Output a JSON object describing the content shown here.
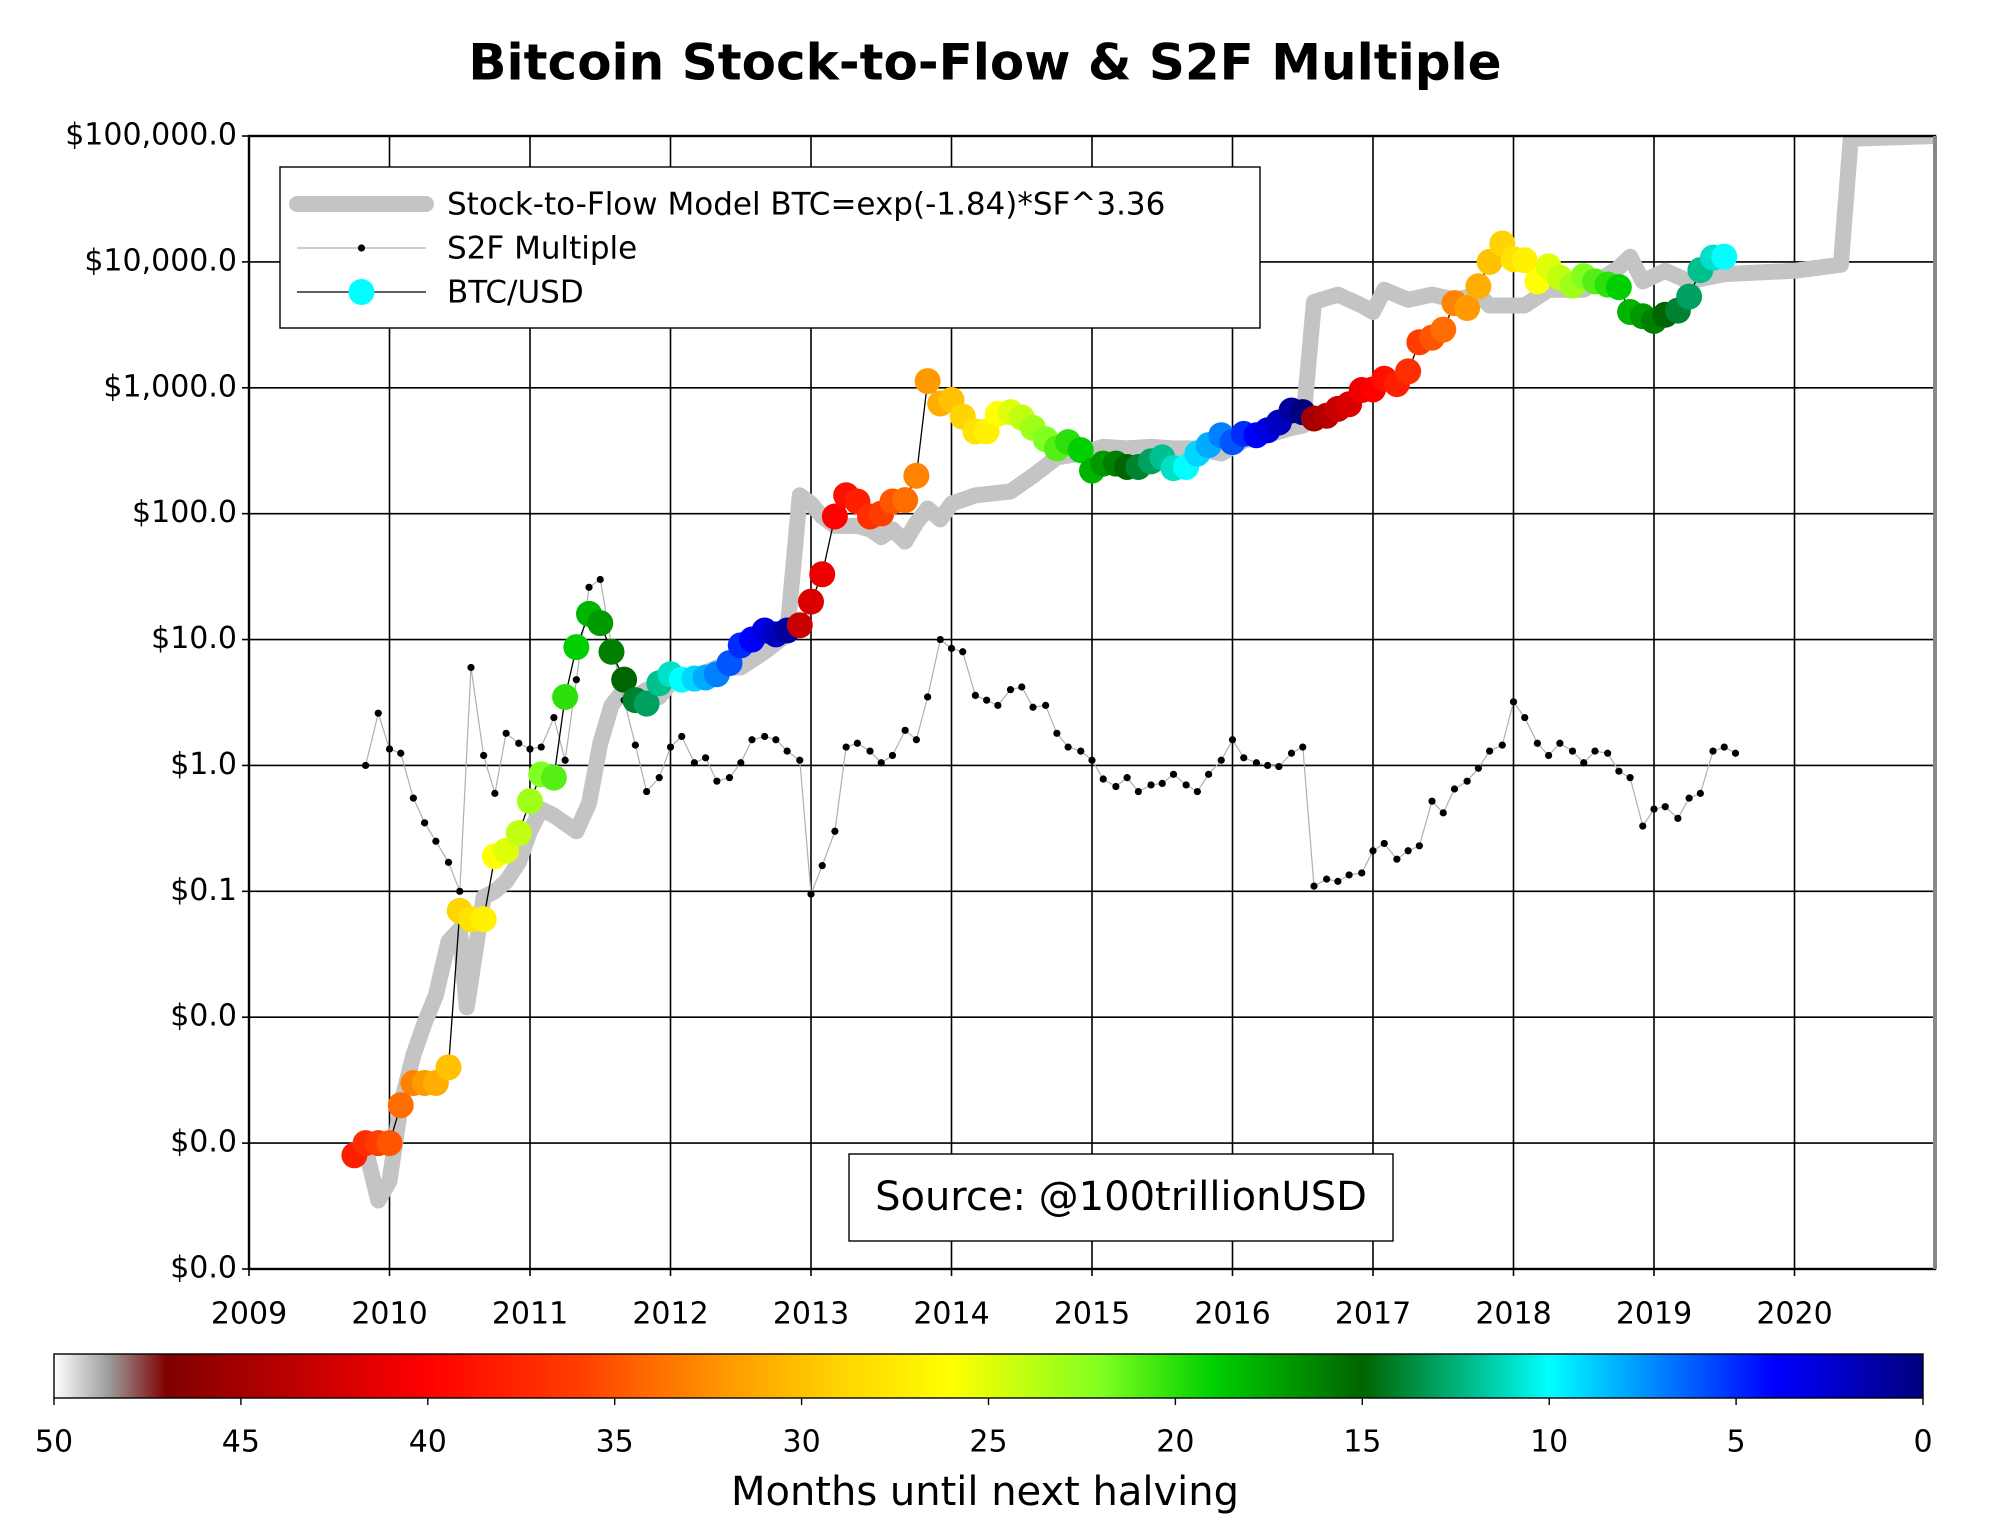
{
  "chart_data": {
    "type": "line",
    "title": "Bitcoin Stock-to-Flow & S2F Multiple",
    "log_y": true,
    "grid": true,
    "legend": "upper left",
    "annotation": "Source: @100trillionUSD",
    "xlim": [
      2009,
      2021
    ],
    "xticks": [
      2009,
      2010,
      2011,
      2012,
      2013,
      2014,
      2015,
      2016,
      2017,
      2018,
      2019,
      2020
    ],
    "ylim": [
      0.0001,
      100000
    ],
    "yticks": [
      {
        "value": 0.0001,
        "label": "$0.0"
      },
      {
        "value": 0.001,
        "label": "$0.0"
      },
      {
        "value": 0.01,
        "label": "$0.0"
      },
      {
        "value": 0.1,
        "label": "$0.1"
      },
      {
        "value": 1,
        "label": "$1.0"
      },
      {
        "value": 10,
        "label": "$10.0"
      },
      {
        "value": 100,
        "label": "$100.0"
      },
      {
        "value": 1000,
        "label": "$1,000.0"
      },
      {
        "value": 10000,
        "label": "$10,000.0"
      },
      {
        "value": 100000,
        "label": "$100,000.0"
      }
    ],
    "x": [
      2009.75,
      2009.83,
      2009.92,
      2010.0,
      2010.08,
      2010.17,
      2010.25,
      2010.33,
      2010.42,
      2010.5,
      2010.58,
      2010.67,
      2010.75,
      2010.83,
      2010.92,
      2011.0,
      2011.08,
      2011.17,
      2011.25,
      2011.33,
      2011.42,
      2011.5,
      2011.58,
      2011.67,
      2011.75,
      2011.83,
      2011.92,
      2012.0,
      2012.08,
      2012.17,
      2012.25,
      2012.33,
      2012.42,
      2012.5,
      2012.58,
      2012.67,
      2012.75,
      2012.83,
      2012.92,
      2013.0,
      2013.08,
      2013.17,
      2013.25,
      2013.33,
      2013.42,
      2013.5,
      2013.58,
      2013.67,
      2013.75,
      2013.83,
      2013.92,
      2014.0,
      2014.08,
      2014.17,
      2014.25,
      2014.33,
      2014.42,
      2014.5,
      2014.58,
      2014.67,
      2014.75,
      2014.83,
      2014.92,
      2015.0,
      2015.08,
      2015.17,
      2015.25,
      2015.33,
      2015.42,
      2015.5,
      2015.58,
      2015.67,
      2015.75,
      2015.83,
      2015.92,
      2016.0,
      2016.08,
      2016.17,
      2016.25,
      2016.33,
      2016.42,
      2016.5,
      2016.58,
      2016.67,
      2016.75,
      2016.83,
      2016.92,
      2017.0,
      2017.08,
      2017.17,
      2017.25,
      2017.33,
      2017.42,
      2017.5,
      2017.58,
      2017.67,
      2017.75,
      2017.83,
      2017.92,
      2018.0,
      2018.08,
      2018.17,
      2018.25,
      2018.33,
      2018.42,
      2018.5,
      2018.58,
      2018.67,
      2018.75,
      2018.83,
      2018.92,
      2019.0,
      2019.08,
      2019.17,
      2019.25,
      2019.33,
      2019.42,
      2019.5,
      2019.58
    ],
    "series": [
      {
        "name": "Stock-to-Flow Model BTC=exp(-1.84)*SF^3.36",
        "color": "#c4c4c4",
        "x": [
          2009.83,
          2009.92,
          2010.0,
          2010.08,
          2010.17,
          2010.25,
          2010.33,
          2010.42,
          2010.5,
          2010.55,
          2010.67,
          2010.75,
          2010.83,
          2010.92,
          2011.0,
          2011.08,
          2011.17,
          2011.33,
          2011.42,
          2011.5,
          2011.58,
          2011.67,
          2011.75,
          2011.83,
          2011.92,
          2012.0,
          2012.17,
          2012.33,
          2012.5,
          2012.67,
          2012.83,
          2012.92,
          2013.0,
          2013.08,
          2013.17,
          2013.33,
          2013.42,
          2013.5,
          2013.58,
          2013.67,
          2013.75,
          2013.83,
          2013.92,
          2014.0,
          2014.17,
          2014.42,
          2014.58,
          2014.75,
          2014.92,
          2015.08,
          2015.25,
          2015.42,
          2015.58,
          2015.75,
          2015.92,
          2016.08,
          2016.25,
          2016.42,
          2016.5,
          2016.58,
          2016.75,
          2016.92,
          2017.0,
          2017.08,
          2017.25,
          2017.42,
          2017.58,
          2017.75,
          2017.83,
          2018.0,
          2018.08,
          2018.25,
          2018.5,
          2018.75,
          2018.83,
          2018.92,
          2019.08,
          2019.25,
          2019.5,
          2020.0,
          2020.33,
          2020.4,
          2021.0
        ],
        "values": [
          0.0009,
          0.00035,
          0.0005,
          0.002,
          0.005,
          0.009,
          0.015,
          0.04,
          0.05,
          0.012,
          0.09,
          0.1,
          0.12,
          0.17,
          0.3,
          0.45,
          0.4,
          0.3,
          0.5,
          1.5,
          3,
          4,
          3.5,
          4,
          3.5,
          4.5,
          5,
          6,
          6,
          8,
          11,
          140,
          120,
          95,
          80,
          80,
          75,
          65,
          75,
          60,
          85,
          110,
          90,
          120,
          140,
          150,
          200,
          280,
          300,
          340,
          330,
          340,
          330,
          330,
          300,
          380,
          420,
          480,
          500,
          4800,
          5500,
          4500,
          4000,
          6000,
          5000,
          5500,
          5000,
          5500,
          4500,
          4500,
          4500,
          6000,
          6000,
          9000,
          11000,
          7000,
          8500,
          7000,
          8000,
          8500,
          9500,
          95000,
          100000
        ]
      },
      {
        "name": "S2F Multiple",
        "color": "#000000",
        "values": [
          null,
          1.0,
          2.6,
          1.35,
          1.25,
          0.55,
          0.35,
          0.25,
          0.17,
          0.1,
          6,
          1.2,
          0.6,
          1.8,
          1.5,
          1.35,
          1.4,
          2.4,
          1.1,
          4.8,
          26,
          30,
          9,
          3.3,
          1.45,
          0.62,
          0.8,
          1.4,
          1.7,
          1.05,
          1.15,
          0.75,
          0.8,
          1.05,
          1.6,
          1.7,
          1.6,
          1.3,
          1.1,
          0.095,
          0.16,
          0.3,
          1.4,
          1.5,
          1.3,
          1.05,
          1.2,
          1.9,
          1.6,
          3.5,
          10,
          8.5,
          8,
          3.6,
          3.3,
          3,
          4,
          4.2,
          2.9,
          3,
          1.8,
          1.4,
          1.3,
          1.1,
          0.78,
          0.68,
          0.8,
          0.62,
          0.7,
          0.72,
          0.85,
          0.7,
          0.62,
          0.85,
          1.1,
          1.6,
          1.15,
          1.05,
          1.0,
          0.98,
          1.25,
          1.4,
          0.11,
          0.125,
          0.12,
          0.135,
          0.14,
          0.21,
          0.24,
          0.18,
          0.21,
          0.23,
          0.52,
          0.42,
          0.65,
          0.75,
          0.95,
          1.3,
          1.45,
          3.2,
          2.4,
          1.5,
          1.2,
          1.5,
          1.3,
          1.05,
          1.3,
          1.25,
          0.9,
          0.8,
          0.33,
          0.45,
          0.47,
          0.38,
          0.55,
          0.6,
          1.3,
          1.4,
          1.25
        ]
      },
      {
        "name": "BTC/USD",
        "color": "#00ffff",
        "values": [
          0.0008,
          0.001,
          0.001,
          0.001,
          0.002,
          0.003,
          0.003,
          0.003,
          0.004,
          0.07,
          0.06,
          0.06,
          0.19,
          0.21,
          0.29,
          0.52,
          0.85,
          0.8,
          3.5,
          8.7,
          16,
          13.5,
          8,
          4.8,
          3.3,
          3.1,
          4.5,
          5.3,
          4.8,
          4.9,
          5,
          5.3,
          6.5,
          9,
          10,
          11.8,
          11,
          11.8,
          13,
          20,
          33,
          95,
          140,
          125,
          95,
          100,
          125,
          128,
          200,
          1130,
          750,
          800,
          590,
          450,
          450,
          620,
          640,
          580,
          480,
          390,
          330,
          370,
          320,
          220,
          250,
          250,
          235,
          235,
          260,
          280,
          230,
          235,
          300,
          350,
          420,
          370,
          430,
          420,
          460,
          530,
          660,
          640,
          570,
          600,
          680,
          740,
          960,
          970,
          1180,
          1070,
          1350,
          2300,
          2500,
          2900,
          4700,
          4300,
          6400,
          10000,
          14000,
          10500,
          10300,
          7000,
          9200,
          7500,
          6500,
          7700,
          7000,
          6600,
          6300,
          4000,
          3700,
          3400,
          3800,
          4100,
          5300,
          8600,
          10800,
          11000,
          null
        ],
        "months": [
          38,
          37,
          36,
          35,
          34,
          33,
          32,
          31,
          30,
          29,
          28,
          27,
          26,
          25,
          24,
          23,
          22,
          21,
          20,
          19,
          18,
          17,
          16,
          15,
          14,
          13,
          12,
          11,
          10,
          9,
          8,
          7,
          6,
          5,
          4,
          3,
          2,
          1,
          43,
          42,
          41,
          40,
          39,
          38,
          37,
          36,
          35,
          34,
          33,
          32,
          31,
          30,
          29,
          28,
          27,
          26,
          25,
          24,
          23,
          22,
          21,
          20,
          19,
          18,
          17,
          16,
          15,
          14,
          13,
          12,
          11,
          10,
          9,
          8,
          7,
          6,
          5,
          4,
          3,
          2,
          1,
          0,
          45,
          44,
          43,
          42,
          41,
          40,
          39,
          38,
          37,
          36,
          35,
          34,
          33,
          32,
          31,
          30,
          29,
          28,
          27,
          26,
          25,
          24,
          23,
          22,
          21,
          20,
          19,
          18,
          17,
          16,
          15,
          14,
          13,
          12,
          11,
          10,
          null
        ]
      }
    ],
    "colorbar": {
      "label": "Months until next halving",
      "lim": [
        50,
        0
      ],
      "ticks": [
        50,
        45,
        40,
        35,
        30,
        25,
        20,
        15,
        10,
        5,
        0
      ],
      "colormap": [
        [
          50,
          "#ffffff"
        ],
        [
          48.5,
          "#9a9a9a"
        ],
        [
          47,
          "#800000"
        ],
        [
          40,
          "#ff0000"
        ],
        [
          36,
          "#ff3d00"
        ],
        [
          32,
          "#ff9a00"
        ],
        [
          29,
          "#ffd400"
        ],
        [
          26,
          "#ffff00"
        ],
        [
          22,
          "#80ff20"
        ],
        [
          19,
          "#00d000"
        ],
        [
          15,
          "#006400"
        ],
        [
          12,
          "#00c090"
        ],
        [
          10,
          "#00ffff"
        ],
        [
          7,
          "#0080ff"
        ],
        [
          4,
          "#0000ff"
        ],
        [
          0,
          "#00007f"
        ]
      ]
    }
  }
}
